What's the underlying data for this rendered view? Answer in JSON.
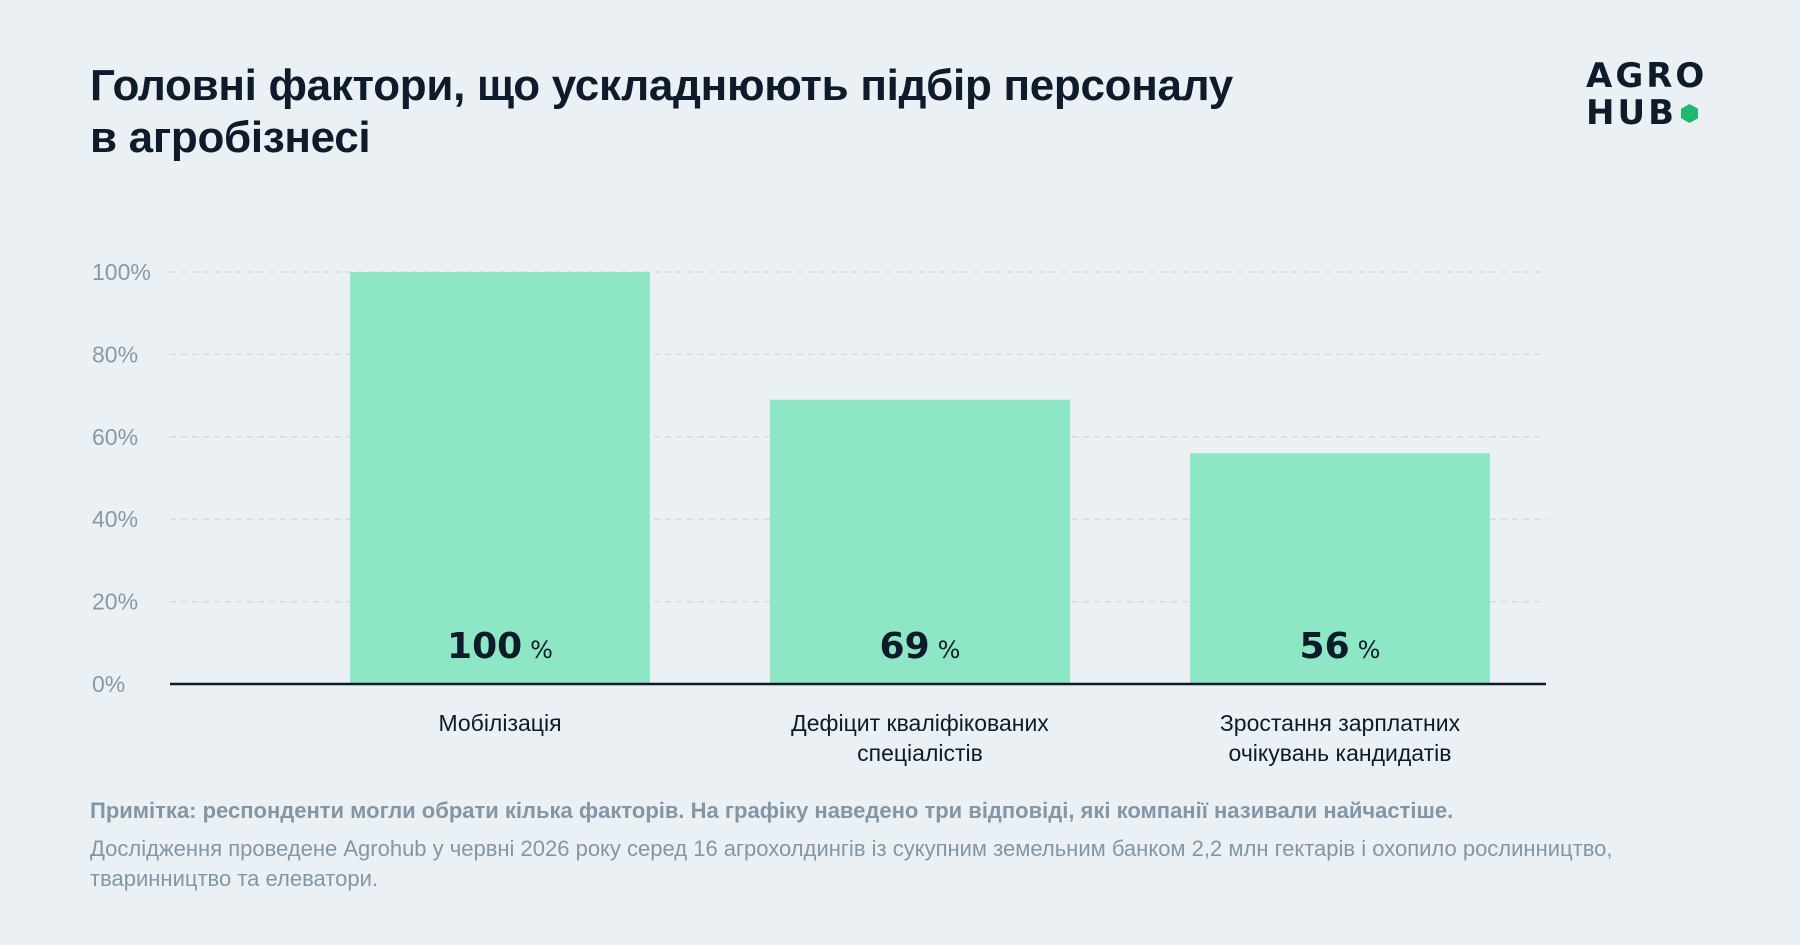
{
  "title": "Головні фактори, що ускладнюють підбір персоналу в агробізнесі",
  "logo": {
    "line1": "AGRO",
    "line2": "HUB",
    "accent_color": "#1fb96e"
  },
  "chart_data": {
    "type": "bar",
    "categories": [
      [
        "Мобілізація"
      ],
      [
        "Дефіцит кваліфікованих",
        "спеціалістів"
      ],
      [
        "Зростання зарплатних",
        "очікувань кандидатів"
      ]
    ],
    "values": [
      100,
      69,
      56
    ],
    "value_suffix": "%",
    "ylim": [
      0,
      100
    ],
    "yticks": [
      0,
      20,
      40,
      60,
      80,
      100
    ],
    "ytick_labels": [
      "0%",
      "20%",
      "40%",
      "60%",
      "80%",
      "100%"
    ],
    "grid": true,
    "bar_color": "#8de6c4"
  },
  "note": "Примітка: респонденти могли обрати кілька факторів. На графіку наведено три відповіді, які компанії називали найчастіше.",
  "source": "Дослідження проведене Agrohub у червні 2026 року серед 16 агрохолдингів із сукупним земельним банком 2,2 млн гектарів і охопило рослинництво, тваринництво та елеватори."
}
